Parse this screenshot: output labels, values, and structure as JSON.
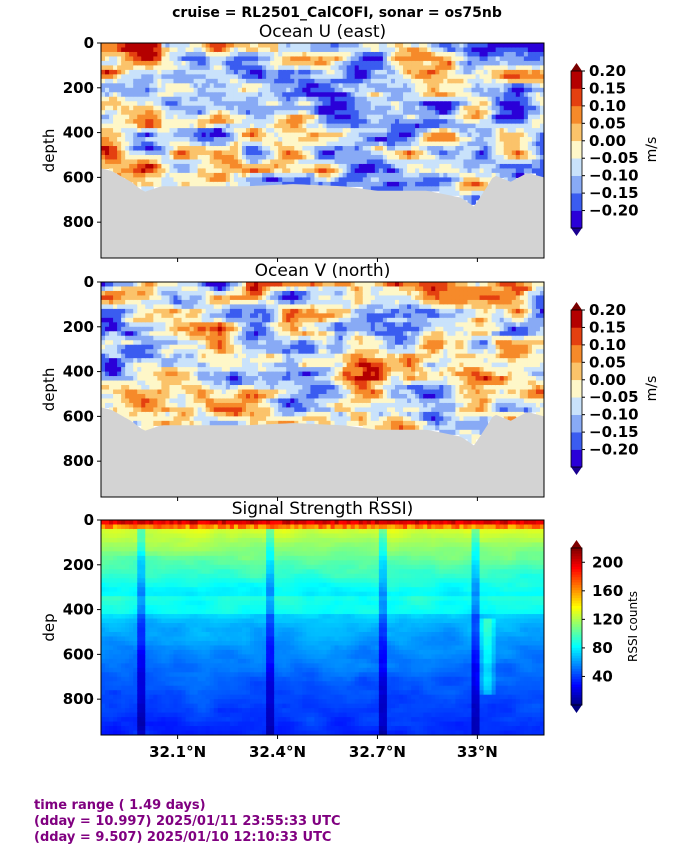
{
  "figure_title": "cruise = RL2501_CalCOFI,  sonar = os75nb",
  "footer": {
    "line1": "time range ( 1.49 days)",
    "line2": "(dday = 10.997) 2025/01/11 23:55:33 UTC",
    "line3": "(dday = 9.507) 2025/01/10 12:10:33 UTC"
  },
  "chart_data": [
    {
      "type": "heatmap",
      "title": "Ocean U (east)",
      "ylabel": "depth",
      "xlim": [
        31.87,
        33.2
      ],
      "ylim": [
        960,
        0
      ],
      "ytick_labels": [
        "0",
        "200",
        "400",
        "600",
        "800"
      ],
      "ytick_values": [
        0,
        200,
        400,
        600,
        800
      ],
      "xtick_labels_shown": false,
      "colorbar": {
        "label": "m/s",
        "levels": [
          -0.2,
          -0.15,
          -0.1,
          -0.05,
          0.0,
          0.05,
          0.1,
          0.15,
          0.2
        ],
        "tick_labels": [
          "0.20",
          "0.15",
          "0.10",
          "0.05",
          "0.00",
          "−0.05",
          "−0.10",
          "−0.15",
          "−0.20"
        ],
        "colors": [
          "#2a00d8",
          "#3a5cf0",
          "#88aaf5",
          "#c9e2fb",
          "#fef7c8",
          "#fbc36a",
          "#f68a2a",
          "#e44010",
          "#b40000"
        ]
      },
      "pattern": "east"
    },
    {
      "type": "heatmap",
      "title": "Ocean V (north)",
      "ylabel": "depth",
      "xlim": [
        31.87,
        33.2
      ],
      "ylim": [
        960,
        0
      ],
      "ytick_labels": [
        "0",
        "200",
        "400",
        "600",
        "800"
      ],
      "ytick_values": [
        0,
        200,
        400,
        600,
        800
      ],
      "xtick_labels_shown": false,
      "colorbar": {
        "label": "m/s",
        "levels": [
          -0.2,
          -0.15,
          -0.1,
          -0.05,
          0.0,
          0.05,
          0.1,
          0.15,
          0.2
        ],
        "tick_labels": [
          "0.20",
          "0.15",
          "0.10",
          "0.05",
          "0.00",
          "−0.05",
          "−0.10",
          "−0.15",
          "−0.20"
        ],
        "colors": [
          "#2a00d8",
          "#3a5cf0",
          "#88aaf5",
          "#c9e2fb",
          "#fef7c8",
          "#fbc36a",
          "#f68a2a",
          "#e44010",
          "#b40000"
        ]
      },
      "pattern": "north"
    },
    {
      "type": "heatmap",
      "title": "Signal Strength RSSI)",
      "ylabel": "dep",
      "xlim": [
        31.87,
        33.2
      ],
      "ylim": [
        960,
        0
      ],
      "ytick_labels": [
        "0",
        "200",
        "400",
        "600",
        "800"
      ],
      "ytick_values": [
        0,
        200,
        400,
        600,
        800
      ],
      "xtick_labels": [
        "32.1°N",
        "32.4°N",
        "32.7°N",
        "33°N"
      ],
      "xtick_values": [
        32.1,
        32.4,
        32.7,
        33.0
      ],
      "colorbar": {
        "label": "RSSI counts",
        "range": [
          0,
          220
        ],
        "tick_labels": [
          "200",
          "160",
          "120",
          "80",
          "40"
        ],
        "tick_values": [
          200,
          160,
          120,
          80,
          40
        ],
        "colormap": "jet"
      },
      "pattern": "rssi"
    }
  ]
}
